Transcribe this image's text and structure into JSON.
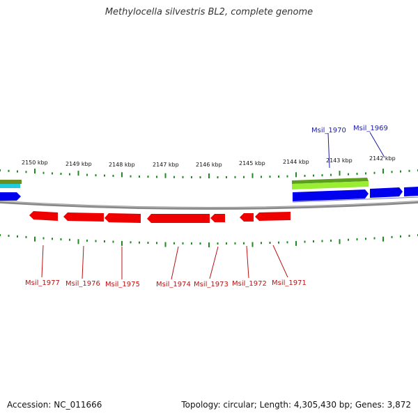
{
  "title": "Methylocella silvestris BL2, complete genome",
  "footer": {
    "accession": "Accession: NC_011666",
    "summary": "Topology: circular; Length: 4,305,430 bp; Genes: 3,872"
  },
  "colors": {
    "forward_gene": "#0000ee",
    "reverse_gene": "#ee0000",
    "highlight_gene": "#99ee33",
    "backbone": "#888888",
    "ticks": "#228822",
    "forward_label": "#1a1aa6",
    "reverse_label": "#bb1111"
  },
  "ruler_labels": [
    "2150 kbp",
    "2149 kbp",
    "2148 kbp",
    "2147 kbp",
    "2146 kbp",
    "2145 kbp",
    "2144 kbp",
    "2143 kbp",
    "2142 kbp"
  ],
  "forward_labels": [
    "Msil_1970",
    "Msil_1969"
  ],
  "reverse_labels": [
    "Msil_1977",
    "Msil_1976",
    "Msil_1975",
    "Msil_1974",
    "Msil_1973",
    "Msil_1972",
    "Msil_1971"
  ]
}
